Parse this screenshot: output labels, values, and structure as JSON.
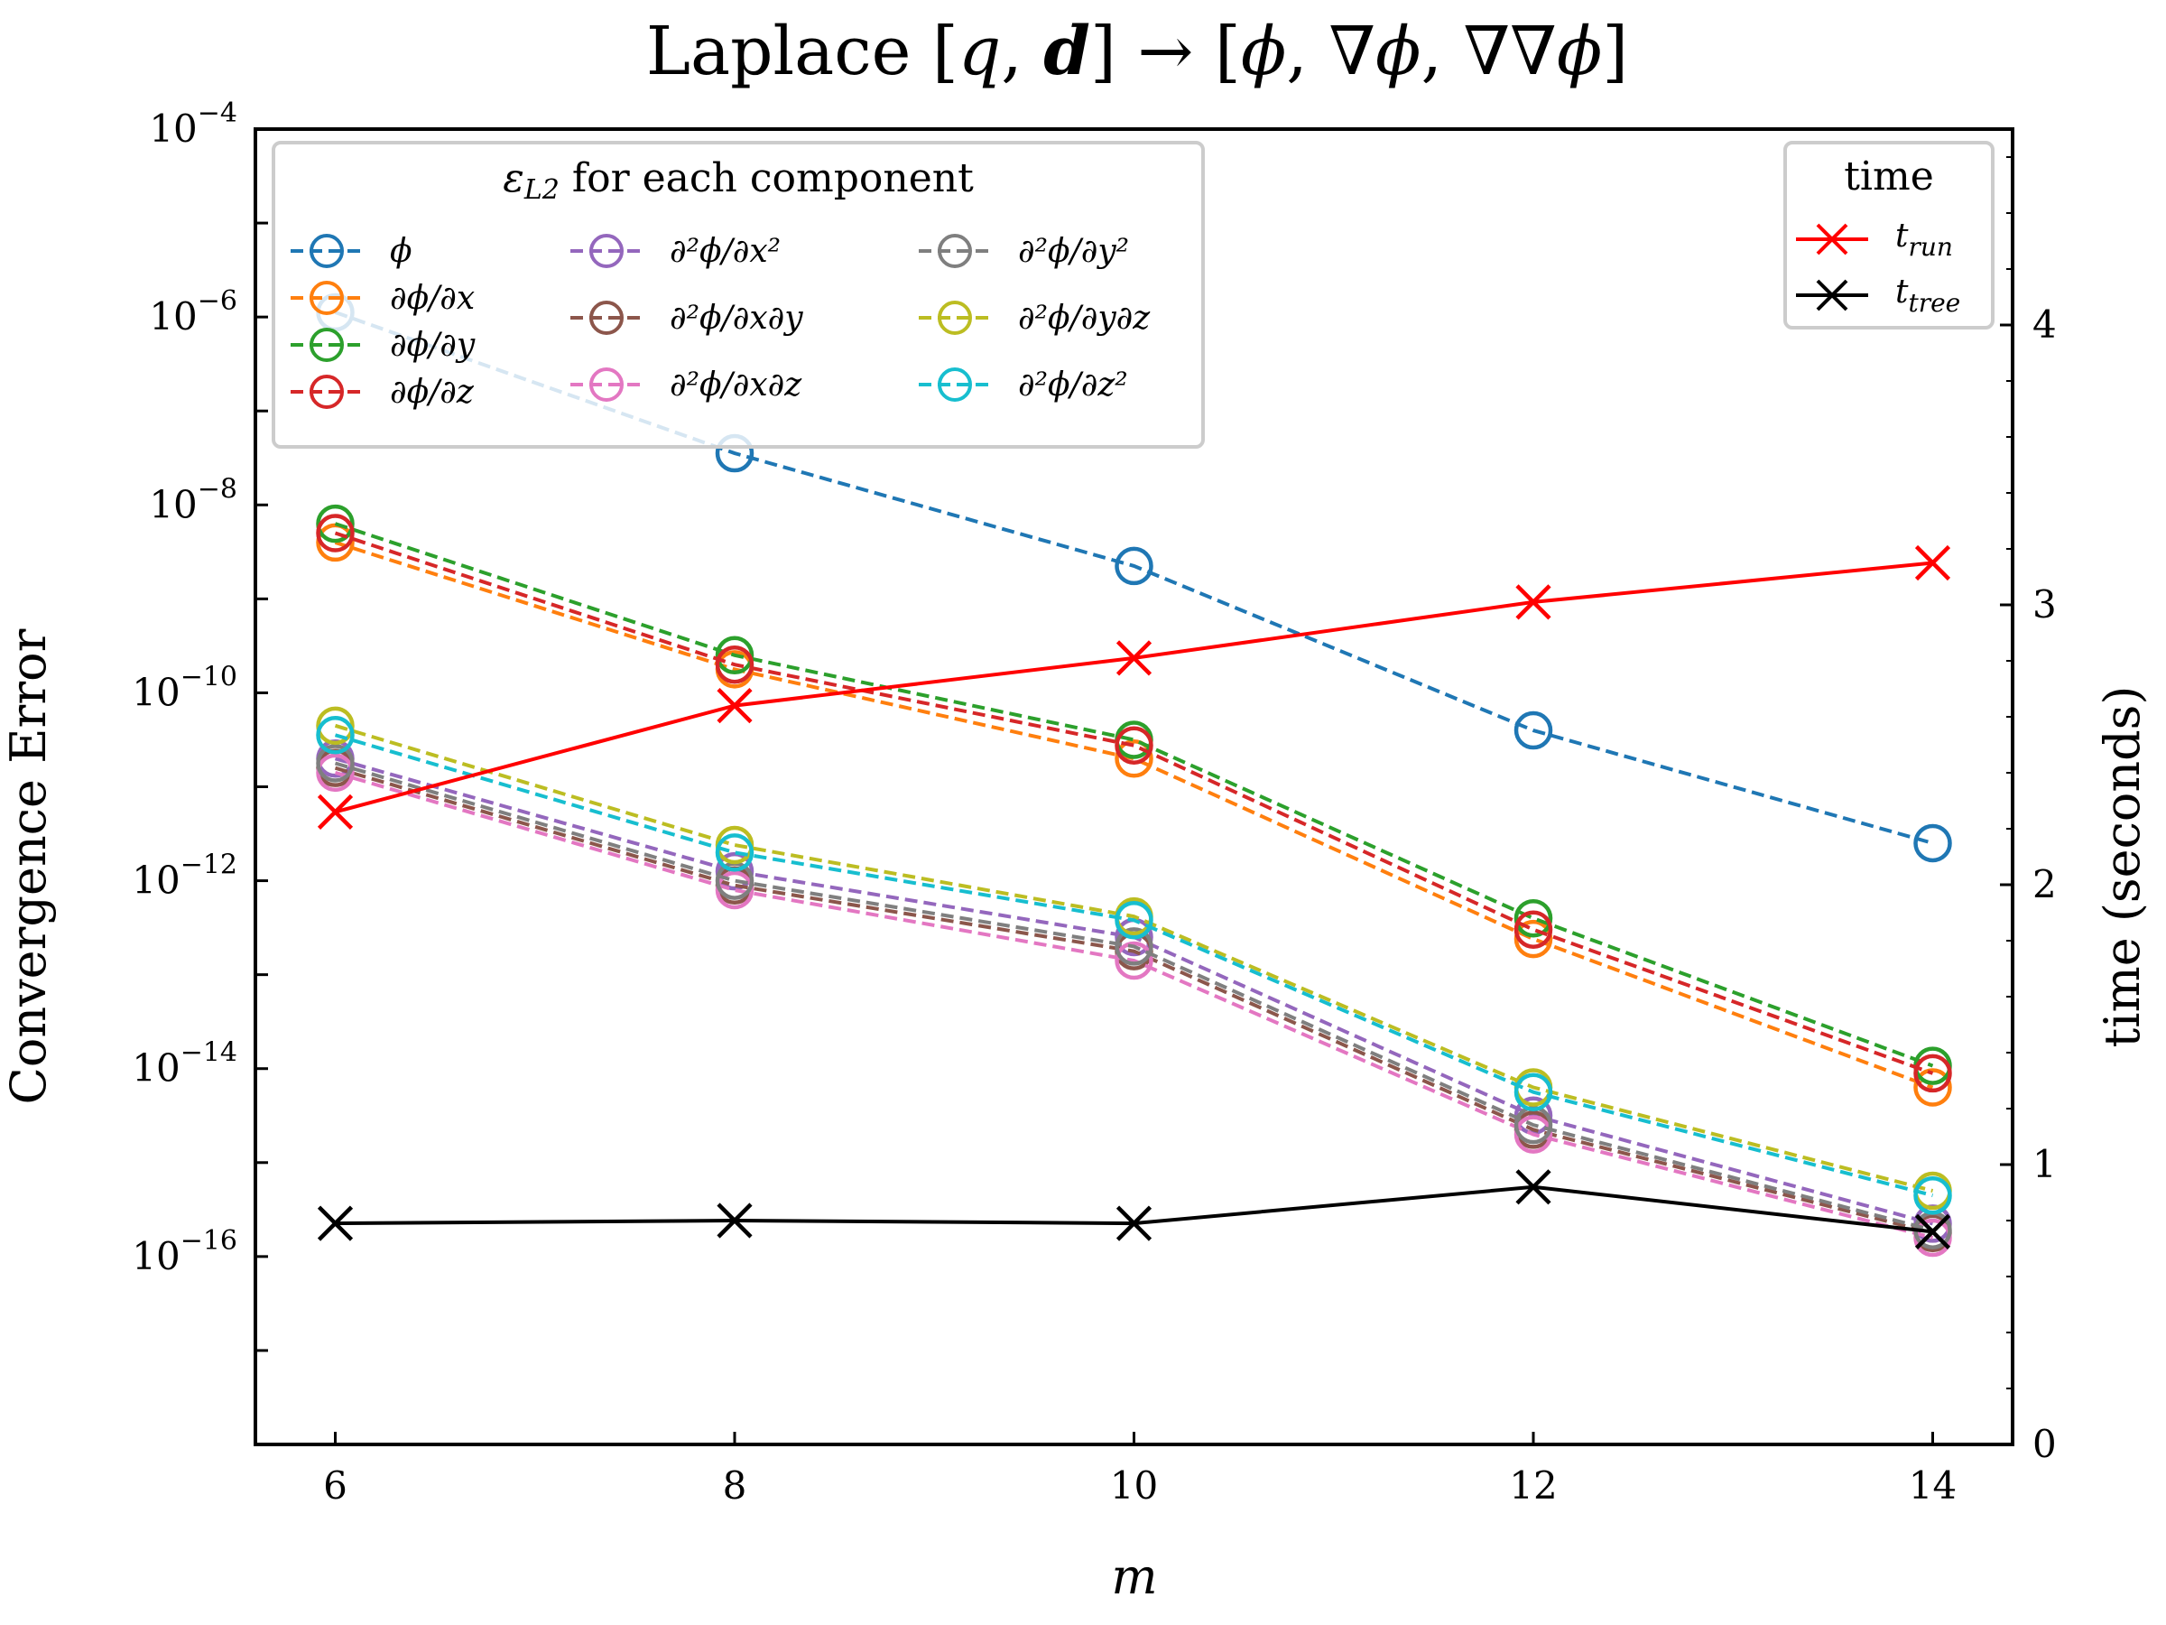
{
  "chart_data": {
    "type": "line",
    "title": "Laplace [q, d] → [ϕ, ∇ϕ, ∇∇ϕ]",
    "xlabel": "m",
    "ylabel_left": "Convergence Error",
    "ylabel_right": "time (seconds)",
    "x": [
      6,
      8,
      10,
      12,
      14
    ],
    "xticks": [
      "6",
      "8",
      "10",
      "12",
      "14"
    ],
    "xlim": [
      5.6,
      14.4
    ],
    "ylim_left_log10": [
      -18,
      -4
    ],
    "yticks_left": [
      {
        "base": "10",
        "exp": "−4",
        "value": -4
      },
      {
        "base": "10",
        "exp": "−6",
        "value": -6
      },
      {
        "base": "10",
        "exp": "−8",
        "value": -8
      },
      {
        "base": "10",
        "exp": "−10",
        "value": -10
      },
      {
        "base": "10",
        "exp": "−12",
        "value": -12
      },
      {
        "base": "10",
        "exp": "−14",
        "value": -14
      },
      {
        "base": "10",
        "exp": "−16",
        "value": -16
      }
    ],
    "ylim_right": [
      0,
      4.7
    ],
    "yticks_right": [
      "0",
      "1",
      "2",
      "3",
      "4"
    ],
    "error_legend_title": "ε L2 for each component",
    "time_legend_title": "time",
    "error_series": [
      {
        "name": "ϕ",
        "color": "#1f77b4",
        "log10": [
          -5.95,
          -7.45,
          -8.65,
          -10.4,
          -11.6
        ]
      },
      {
        "name": "∂ϕ/∂x",
        "color": "#ff7f0e",
        "log10": [
          -8.4,
          -9.75,
          -10.7,
          -12.62,
          -14.2
        ]
      },
      {
        "name": "∂ϕ/∂y",
        "color": "#2ca02c",
        "log10": [
          -8.2,
          -9.6,
          -10.5,
          -12.4,
          -13.97
        ]
      },
      {
        "name": "∂ϕ/∂z",
        "color": "#d62728",
        "log10": [
          -8.3,
          -9.7,
          -10.56,
          -12.52,
          -14.05
        ]
      },
      {
        "name": "∂²ϕ/∂x²",
        "color": "#9467bd",
        "log10": [
          -10.7,
          -11.9,
          -12.6,
          -14.5,
          -15.65
        ]
      },
      {
        "name": "∂²ϕ/∂x∂y",
        "color": "#8c564b",
        "log10": [
          -10.8,
          -12.05,
          -12.75,
          -14.65,
          -15.75
        ]
      },
      {
        "name": "∂²ϕ/∂x∂z",
        "color": "#e377c2",
        "log10": [
          -10.85,
          -12.1,
          -12.85,
          -14.7,
          -15.8
        ]
      },
      {
        "name": "∂²ϕ/∂y²",
        "color": "#7f7f7f",
        "log10": [
          -10.75,
          -12.0,
          -12.7,
          -14.6,
          -15.72
        ]
      },
      {
        "name": "∂²ϕ/∂y∂z",
        "color": "#bcbd22",
        "log10": [
          -10.35,
          -11.62,
          -12.38,
          -14.2,
          -15.3
        ]
      },
      {
        "name": "∂²ϕ/∂z²",
        "color": "#17becf",
        "log10": [
          -10.45,
          -11.7,
          -12.42,
          -14.25,
          -15.35
        ]
      }
    ],
    "time_series": [
      {
        "name": "t run",
        "color": "#ff0000",
        "values": [
          2.26,
          2.64,
          2.81,
          3.01,
          3.15
        ]
      },
      {
        "name": "t tree",
        "color": "#000000",
        "values": [
          0.79,
          0.8,
          0.79,
          0.92,
          0.76
        ]
      }
    ]
  }
}
